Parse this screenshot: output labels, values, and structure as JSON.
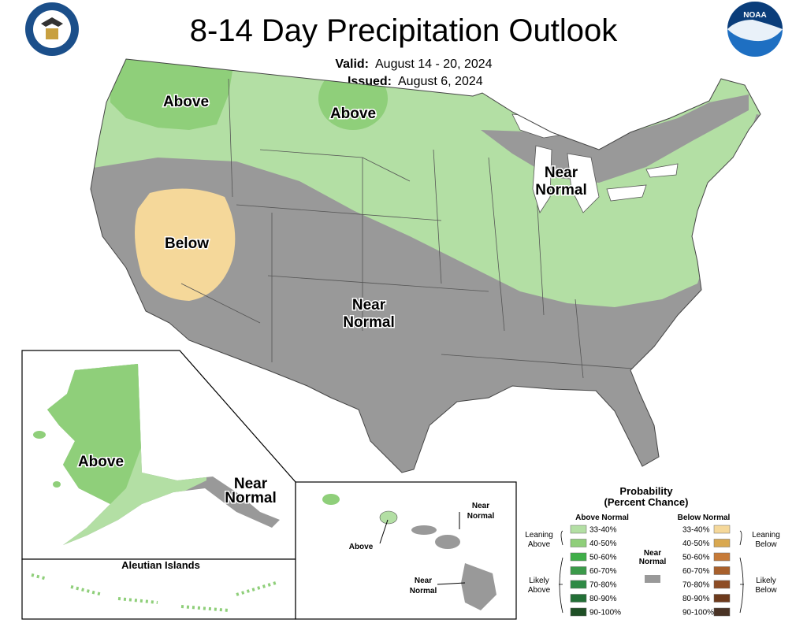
{
  "header": {
    "title": "8-14 Day Precipitation Outlook",
    "valid_label": "Valid:",
    "valid_date": "August 14 - 20, 2024",
    "issued_label": "Issued:",
    "issued_date": "August 6, 2024",
    "logo": "NOAA"
  },
  "conus_labels": [
    {
      "lines": [
        "Above"
      ]
    },
    {
      "lines": [
        "Above"
      ]
    },
    {
      "lines": [
        "Below"
      ]
    },
    {
      "lines": [
        "Near",
        "Normal"
      ]
    },
    {
      "lines": [
        "Near",
        "Normal"
      ]
    }
  ],
  "alaska_labels": [
    {
      "lines": [
        "Above"
      ]
    },
    {
      "lines": [
        "Near",
        "Normal"
      ]
    }
  ],
  "aleutian_title": "Aleutian Islands",
  "hawaii_labels": [
    {
      "lines": [
        "Near",
        "Normal"
      ]
    },
    {
      "lines": [
        "Above"
      ]
    },
    {
      "lines": [
        "Near",
        "Normal"
      ]
    }
  ],
  "legend": {
    "title": [
      "Probability",
      "(Percent Chance)"
    ],
    "above_header": "Above Normal",
    "below_header": "Below Normal",
    "above_ranges": [
      "33-40%",
      "40-50%",
      "50-60%",
      "60-70%",
      "70-80%",
      "80-90%",
      "90-100%"
    ],
    "below_ranges": [
      "33-40%",
      "40-50%",
      "50-60%",
      "60-70%",
      "70-80%",
      "80-90%",
      "90-100%"
    ],
    "leaning_above": [
      "Leaning",
      "Above"
    ],
    "likely_above": [
      "Likely",
      "Above"
    ],
    "near_normal": [
      "Near",
      "Normal"
    ],
    "leaning_below": [
      "Leaning",
      "Below"
    ],
    "likely_below": [
      "Likely",
      "Below"
    ]
  }
}
